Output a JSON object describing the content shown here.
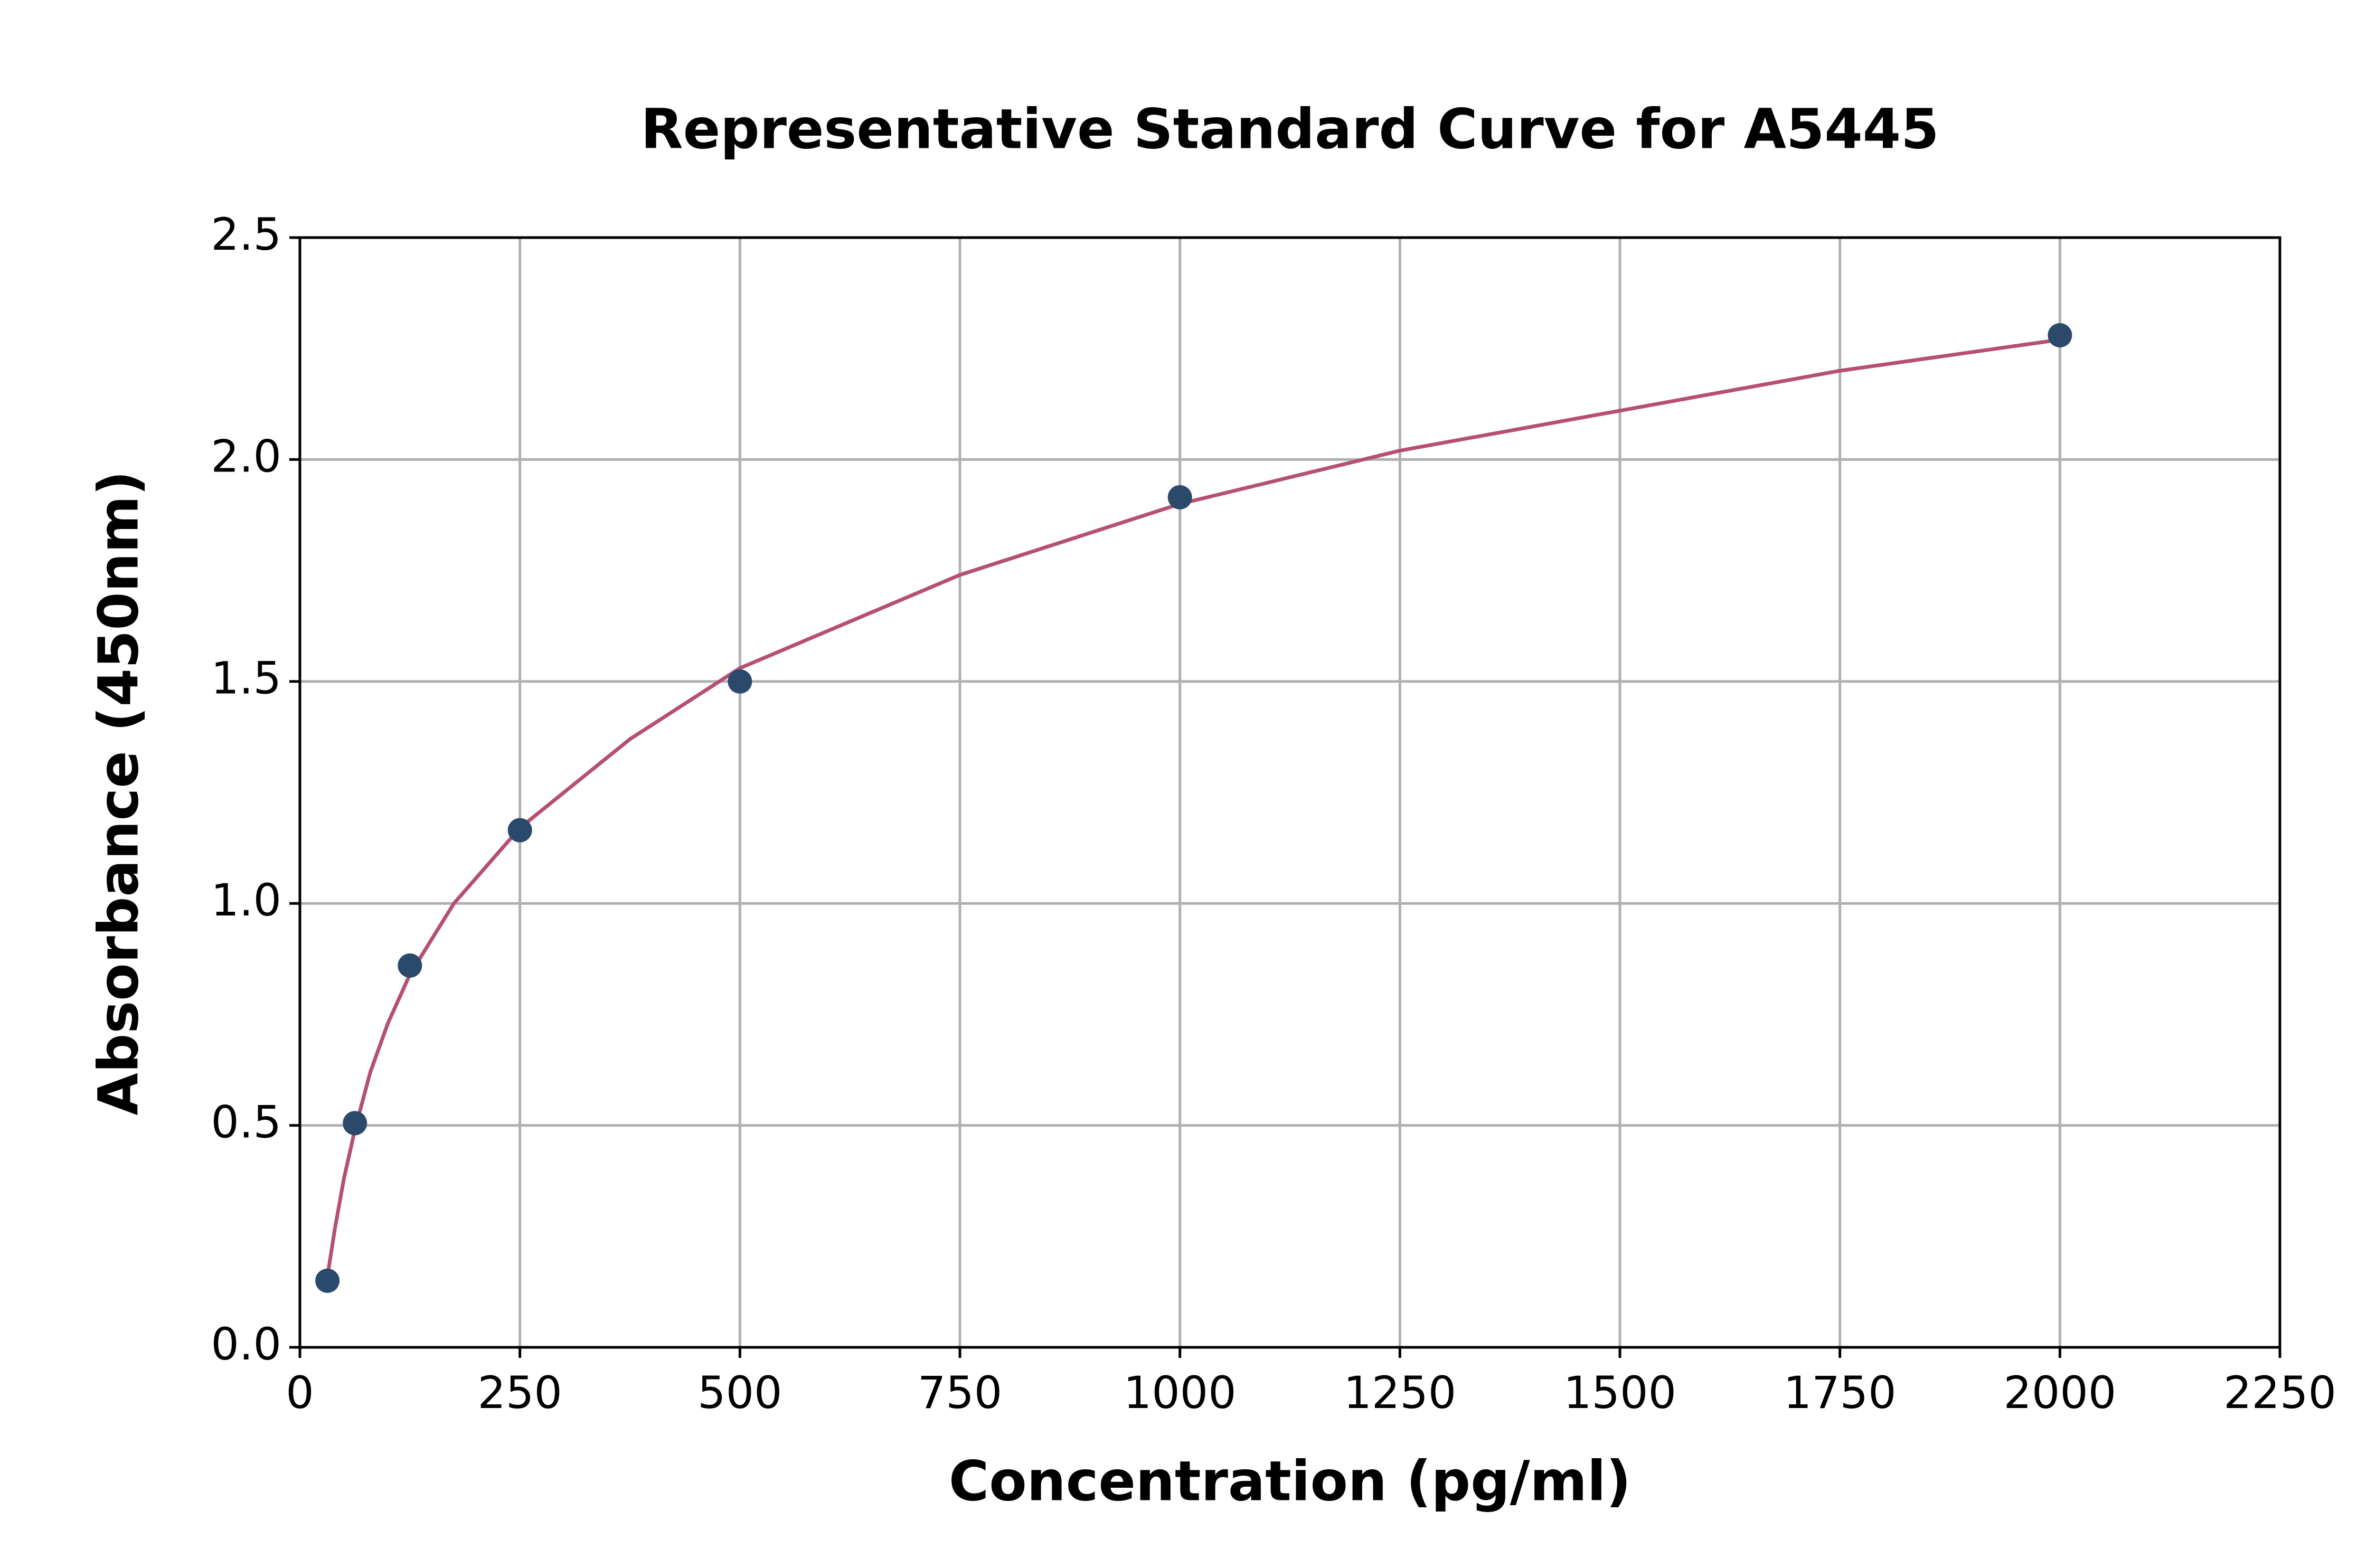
{
  "chart_data": {
    "type": "scatter",
    "title": "Representative Standard Curve for A5445",
    "x_label": "Concentration (pg/ml)",
    "y_label": "Absorbance (450nm)",
    "xlim": [
      0,
      2250
    ],
    "ylim": [
      0,
      2.5
    ],
    "xticks": [
      0,
      250,
      500,
      750,
      1000,
      1250,
      1500,
      1750,
      2000,
      2250
    ],
    "yticks": [
      {
        "value": 0,
        "label": "0.0"
      },
      0.5,
      {
        "value": 1,
        "label": "1.0"
      },
      1.5,
      {
        "value": 2,
        "label": "2.0"
      },
      2.5
    ],
    "grid": true,
    "series": [
      {
        "type": "line",
        "color": "#b5506f",
        "x": [
          31.25,
          40,
          50,
          62.5,
          80,
          100,
          125,
          175,
          250,
          375,
          500,
          750,
          1000,
          1250,
          1500,
          1750,
          2000
        ],
        "values": [
          0.16,
          0.27,
          0.38,
          0.49,
          0.62,
          0.73,
          0.84,
          1.0,
          1.17,
          1.37,
          1.53,
          1.74,
          1.9,
          2.02,
          2.11,
          2.2,
          2.27
        ]
      },
      {
        "type": "scatter",
        "color": "#2b4a6b",
        "x": [
          31.25,
          62.5,
          125,
          250,
          500,
          1000,
          2000
        ],
        "values": [
          0.15,
          0.505,
          0.86,
          1.165,
          1.5,
          1.915,
          2.28
        ]
      }
    ]
  }
}
